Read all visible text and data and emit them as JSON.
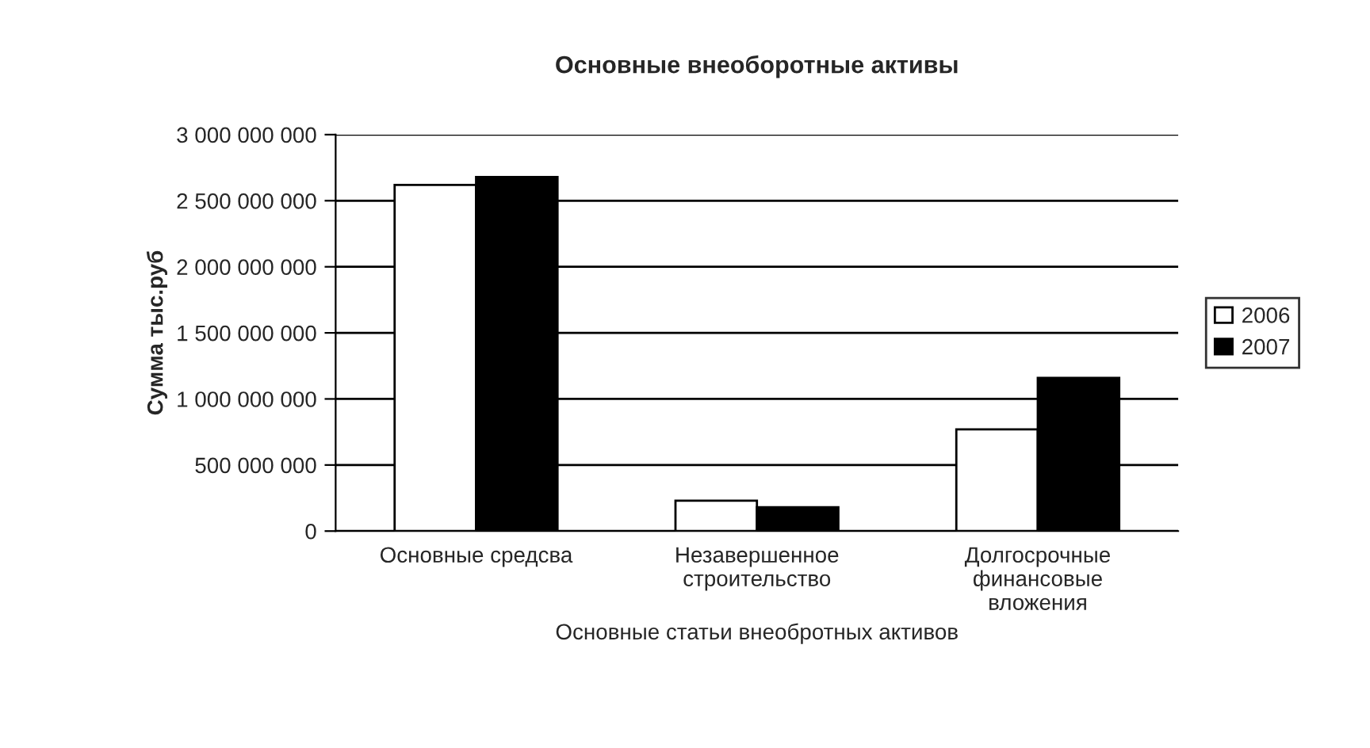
{
  "chart_data": {
    "type": "bar",
    "title": "Основные внеоборотные активы",
    "xlabel": "Основные статьи внеобротных активов",
    "ylabel": "Сумма тыс.руб",
    "categories": [
      "Основные средсва",
      "Незавершенное\nстроительство",
      "Долгосрочные\nфинансовые\nвложения"
    ],
    "series": [
      {
        "name": "2006",
        "color": "#ffffff",
        "values": [
          2620000000,
          230000000,
          770000000
        ]
      },
      {
        "name": "2007",
        "color": "#000000",
        "values": [
          2680000000,
          180000000,
          1160000000
        ]
      }
    ],
    "ylim": [
      0,
      3000000000
    ],
    "yticks": [
      0,
      {
        "value": 500000000,
        "label": "500 000 000"
      },
      {
        "value": 1000000000,
        "label": "1 000 000 000"
      },
      {
        "value": 1500000000,
        "label": "1 500 000 000"
      },
      {
        "value": 2000000000,
        "label": "2 000 000 000"
      },
      {
        "value": 2500000000,
        "label": "2 500 000 000"
      },
      {
        "value": 3000000000,
        "label": "3 000 000 000"
      }
    ],
    "grid": "y",
    "legend": "right"
  }
}
